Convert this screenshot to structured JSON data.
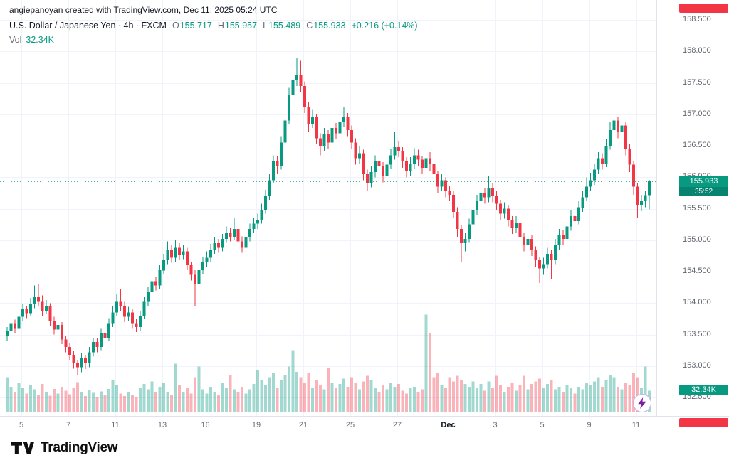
{
  "meta": {
    "copyright": "angiepanoyan created with TradingView.com, Dec 11, 2025 05:24 UTC"
  },
  "legend": {
    "symbol_title": "U.S. Dollar / Japanese Yen · 4h · FXCM",
    "ohlc": {
      "o_label": "O",
      "o": "155.717",
      "h_label": "H",
      "h": "155.957",
      "l_label": "L",
      "l": "155.489",
      "c_label": "C",
      "c": "155.933",
      "change": "+0.216 (+0.14%)"
    },
    "volume_label": "Vol",
    "volume_value": "32.34K"
  },
  "price_badge": {
    "price": "155.933",
    "countdown": "35:52",
    "color": "#089981"
  },
  "volume_badge": {
    "value": "32.34K",
    "color": "#089981"
  },
  "logo": {
    "text": "TradingView"
  },
  "colors": {
    "up": "#089981",
    "down": "#f23645",
    "volume_up": "rgba(8,153,129,0.38)",
    "volume_down": "rgba(242,54,69,0.38)",
    "grid": "#f0f3fa",
    "axis_text": "#5f636e",
    "badge_red": "#f23645"
  },
  "chart_data": {
    "type": "candlestick",
    "title": "U.S. Dollar / Japanese Yen",
    "interval": "4h",
    "exchange": "FXCM",
    "legend_position": "top-left",
    "grid": true,
    "ylim": [
      152.2,
      158.7
    ],
    "last": {
      "open": 155.717,
      "high": 155.957,
      "low": 155.489,
      "close": 155.933,
      "change": "+0.216 (+0.14%)",
      "countdown": "35:52",
      "volume_display": "32.34K"
    },
    "price_axis_ticks": [
      "158.500",
      "158.000",
      "157.500",
      "157.000",
      "156.500",
      "156.000",
      "155.500",
      "155.000",
      "154.500",
      "154.000",
      "153.500",
      "153.000",
      "152.500"
    ],
    "time_axis_ticks": [
      {
        "label": "5",
        "i": 4
      },
      {
        "label": "7",
        "i": 16
      },
      {
        "label": "11",
        "i": 28
      },
      {
        "label": "13",
        "i": 40
      },
      {
        "label": "16",
        "i": 51
      },
      {
        "label": "19",
        "i": 64
      },
      {
        "label": "21",
        "i": 76
      },
      {
        "label": "25",
        "i": 88
      },
      {
        "label": "27",
        "i": 100
      },
      {
        "label": "Dec",
        "i": 113
      },
      {
        "label": "3",
        "i": 125
      },
      {
        "label": "5",
        "i": 137
      },
      {
        "label": "9",
        "i": 149
      },
      {
        "label": "11",
        "i": 161
      }
    ],
    "columns": [
      "open",
      "high",
      "low",
      "close",
      "volume_k"
    ],
    "candles": [
      [
        153.48,
        153.62,
        153.4,
        153.55,
        52
      ],
      [
        153.55,
        153.75,
        153.5,
        153.68,
        38
      ],
      [
        153.68,
        153.74,
        153.52,
        153.6,
        30
      ],
      [
        153.6,
        153.85,
        153.55,
        153.78,
        44
      ],
      [
        153.78,
        153.98,
        153.72,
        153.9,
        36
      ],
      [
        153.9,
        153.96,
        153.76,
        153.84,
        28
      ],
      [
        153.84,
        154.08,
        153.8,
        153.98,
        40
      ],
      [
        153.98,
        154.28,
        153.92,
        154.1,
        34
      ],
      [
        154.1,
        154.3,
        153.96,
        154.02,
        26
      ],
      [
        154.02,
        154.12,
        153.8,
        153.88,
        42
      ],
      [
        153.88,
        154.05,
        153.82,
        153.95,
        30
      ],
      [
        153.95,
        154.0,
        153.64,
        153.72,
        25
      ],
      [
        153.72,
        153.78,
        153.5,
        153.58,
        35
      ],
      [
        153.58,
        153.74,
        153.52,
        153.65,
        28
      ],
      [
        153.65,
        153.7,
        153.35,
        153.42,
        38
      ],
      [
        153.42,
        153.48,
        153.22,
        153.3,
        32
      ],
      [
        153.3,
        153.36,
        153.1,
        153.18,
        27
      ],
      [
        153.18,
        153.24,
        152.96,
        153.05,
        36
      ],
      [
        153.05,
        153.1,
        152.86,
        152.98,
        45
      ],
      [
        152.98,
        153.2,
        152.9,
        153.12,
        30
      ],
      [
        153.12,
        153.18,
        152.95,
        153.05,
        24
      ],
      [
        153.05,
        153.3,
        152.98,
        153.22,
        33
      ],
      [
        153.22,
        153.45,
        153.15,
        153.38,
        29
      ],
      [
        153.38,
        153.44,
        153.22,
        153.3,
        22
      ],
      [
        153.3,
        153.6,
        153.25,
        153.52,
        31
      ],
      [
        153.52,
        153.58,
        153.36,
        153.45,
        26
      ],
      [
        153.45,
        153.76,
        153.4,
        153.68,
        35
      ],
      [
        153.68,
        153.95,
        153.62,
        153.85,
        48
      ],
      [
        153.85,
        154.15,
        153.8,
        154.02,
        40
      ],
      [
        154.02,
        154.22,
        153.88,
        153.95,
        28
      ],
      [
        153.95,
        154.02,
        153.7,
        153.78,
        24
      ],
      [
        153.78,
        153.94,
        153.72,
        153.85,
        30
      ],
      [
        153.85,
        153.9,
        153.6,
        153.68,
        26
      ],
      [
        153.68,
        153.75,
        153.54,
        153.62,
        22
      ],
      [
        153.62,
        153.88,
        153.56,
        153.8,
        36
      ],
      [
        153.8,
        154.1,
        153.75,
        154.02,
        42
      ],
      [
        154.02,
        154.26,
        153.96,
        154.18,
        34
      ],
      [
        154.18,
        154.44,
        154.12,
        154.35,
        46
      ],
      [
        154.35,
        154.42,
        154.2,
        154.28,
        30
      ],
      [
        154.28,
        154.6,
        154.22,
        154.52,
        38
      ],
      [
        154.52,
        154.78,
        154.46,
        154.68,
        44
      ],
      [
        154.68,
        154.98,
        154.62,
        154.85,
        30
      ],
      [
        154.85,
        154.92,
        154.64,
        154.72,
        26
      ],
      [
        154.72,
        155.0,
        154.66,
        154.88,
        72
      ],
      [
        154.88,
        154.95,
        154.68,
        154.76,
        40
      ],
      [
        154.76,
        154.92,
        154.7,
        154.82,
        30
      ],
      [
        154.82,
        154.88,
        154.52,
        154.6,
        36
      ],
      [
        154.6,
        154.66,
        154.36,
        154.45,
        28
      ],
      [
        154.45,
        154.52,
        153.95,
        154.3,
        52
      ],
      [
        154.3,
        154.6,
        154.22,
        154.52,
        68
      ],
      [
        154.52,
        154.74,
        154.46,
        154.65,
        34
      ],
      [
        154.65,
        154.82,
        154.58,
        154.72,
        28
      ],
      [
        154.72,
        154.94,
        154.66,
        154.85,
        38
      ],
      [
        154.85,
        155.05,
        154.78,
        154.95,
        30
      ],
      [
        154.95,
        155.02,
        154.8,
        154.88,
        26
      ],
      [
        154.88,
        155.1,
        154.82,
        155.02,
        44
      ],
      [
        155.02,
        155.22,
        154.96,
        155.12,
        36
      ],
      [
        155.12,
        155.2,
        154.98,
        155.05,
        56
      ],
      [
        155.05,
        155.35,
        155.0,
        155.18,
        34
      ],
      [
        155.18,
        155.24,
        154.9,
        154.98,
        30
      ],
      [
        154.98,
        155.06,
        154.8,
        154.88,
        38
      ],
      [
        154.88,
        155.14,
        154.82,
        155.05,
        28
      ],
      [
        155.05,
        155.26,
        154.98,
        155.18,
        34
      ],
      [
        155.18,
        155.36,
        155.12,
        155.26,
        42
      ],
      [
        155.26,
        155.42,
        155.18,
        155.32,
        62
      ],
      [
        155.32,
        155.58,
        155.26,
        155.48,
        48
      ],
      [
        155.48,
        155.8,
        155.42,
        155.7,
        40
      ],
      [
        155.7,
        156.05,
        155.64,
        155.95,
        52
      ],
      [
        155.95,
        156.35,
        155.9,
        156.25,
        58
      ],
      [
        156.25,
        156.34,
        156.05,
        156.18,
        36
      ],
      [
        156.18,
        156.65,
        156.12,
        156.55,
        48
      ],
      [
        156.55,
        157.0,
        156.48,
        156.9,
        55
      ],
      [
        156.9,
        157.42,
        156.85,
        157.3,
        68
      ],
      [
        157.3,
        157.78,
        157.22,
        157.55,
        92
      ],
      [
        157.55,
        157.9,
        157.45,
        157.62,
        60
      ],
      [
        157.62,
        157.85,
        157.35,
        157.45,
        52
      ],
      [
        157.45,
        157.52,
        157.02,
        157.12,
        44
      ],
      [
        157.12,
        157.2,
        156.72,
        156.85,
        58
      ],
      [
        156.85,
        157.08,
        156.78,
        156.95,
        36
      ],
      [
        156.95,
        157.0,
        156.52,
        156.62,
        48
      ],
      [
        156.62,
        156.7,
        156.35,
        156.5,
        40
      ],
      [
        156.5,
        156.78,
        156.42,
        156.68,
        34
      ],
      [
        156.68,
        156.75,
        156.45,
        156.55,
        66
      ],
      [
        156.55,
        156.88,
        156.48,
        156.78,
        44
      ],
      [
        156.78,
        156.86,
        156.6,
        156.7,
        36
      ],
      [
        156.7,
        156.98,
        156.62,
        156.88,
        42
      ],
      [
        156.88,
        157.12,
        156.8,
        156.95,
        50
      ],
      [
        156.95,
        157.02,
        156.65,
        156.75,
        38
      ],
      [
        156.75,
        156.82,
        156.45,
        156.55,
        52
      ],
      [
        156.55,
        156.62,
        156.2,
        156.3,
        44
      ],
      [
        156.3,
        156.5,
        156.22,
        156.38,
        34
      ],
      [
        156.38,
        156.44,
        155.95,
        156.05,
        46
      ],
      [
        156.05,
        156.12,
        155.78,
        155.9,
        54
      ],
      [
        155.9,
        156.18,
        155.84,
        156.08,
        48
      ],
      [
        156.08,
        156.35,
        156.0,
        156.25,
        36
      ],
      [
        156.25,
        156.32,
        156.08,
        156.18,
        30
      ],
      [
        156.18,
        156.24,
        155.92,
        156.02,
        40
      ],
      [
        156.02,
        156.3,
        155.96,
        156.2,
        34
      ],
      [
        156.2,
        156.45,
        156.14,
        156.35,
        44
      ],
      [
        156.35,
        156.72,
        156.28,
        156.48,
        38
      ],
      [
        156.48,
        156.58,
        156.32,
        156.42,
        42
      ],
      [
        156.42,
        156.48,
        156.15,
        156.25,
        32
      ],
      [
        156.25,
        156.32,
        156.0,
        156.1,
        28
      ],
      [
        156.1,
        156.32,
        156.02,
        156.22,
        36
      ],
      [
        156.22,
        156.46,
        156.14,
        156.35,
        38
      ],
      [
        156.35,
        156.44,
        156.18,
        156.28,
        30
      ],
      [
        156.28,
        156.34,
        156.05,
        156.15,
        34
      ],
      [
        156.15,
        156.42,
        156.06,
        156.3,
        145
      ],
      [
        156.3,
        156.4,
        156.1,
        156.22,
        118
      ],
      [
        156.22,
        156.28,
        155.95,
        156.05,
        52
      ],
      [
        156.05,
        156.1,
        155.75,
        155.85,
        58
      ],
      [
        155.85,
        156.05,
        155.78,
        155.95,
        40
      ],
      [
        155.95,
        156.0,
        155.68,
        155.78,
        36
      ],
      [
        155.78,
        155.86,
        155.62,
        155.72,
        52
      ],
      [
        155.72,
        155.78,
        155.35,
        155.45,
        46
      ],
      [
        155.45,
        155.52,
        155.05,
        155.18,
        54
      ],
      [
        155.18,
        155.24,
        154.65,
        154.95,
        48
      ],
      [
        154.95,
        155.12,
        154.82,
        155.02,
        42
      ],
      [
        155.02,
        155.34,
        154.96,
        155.25,
        38
      ],
      [
        155.25,
        155.58,
        155.18,
        155.48,
        46
      ],
      [
        155.48,
        155.72,
        155.4,
        155.62,
        36
      ],
      [
        155.62,
        155.86,
        155.55,
        155.75,
        42
      ],
      [
        155.75,
        155.82,
        155.58,
        155.68,
        32
      ],
      [
        155.68,
        156.02,
        155.6,
        155.82,
        46
      ],
      [
        155.82,
        155.9,
        155.6,
        155.7,
        36
      ],
      [
        155.7,
        155.78,
        155.48,
        155.58,
        54
      ],
      [
        155.58,
        155.64,
        155.32,
        155.42,
        40
      ],
      [
        155.42,
        155.6,
        155.34,
        155.5,
        30
      ],
      [
        155.5,
        155.56,
        155.22,
        155.32,
        38
      ],
      [
        155.32,
        155.38,
        155.1,
        155.2,
        44
      ],
      [
        155.2,
        155.38,
        155.12,
        155.28,
        32
      ],
      [
        155.28,
        155.32,
        154.95,
        155.05,
        40
      ],
      [
        155.05,
        155.12,
        154.82,
        154.92,
        54
      ],
      [
        154.92,
        155.12,
        154.85,
        155.02,
        34
      ],
      [
        155.02,
        155.08,
        154.75,
        154.85,
        42
      ],
      [
        154.85,
        154.9,
        154.58,
        154.68,
        46
      ],
      [
        154.68,
        154.74,
        154.32,
        154.55,
        50
      ],
      [
        154.55,
        154.72,
        154.45,
        154.62,
        36
      ],
      [
        154.62,
        154.88,
        154.55,
        154.78,
        42
      ],
      [
        154.78,
        154.84,
        154.38,
        154.68,
        48
      ],
      [
        154.68,
        155.02,
        154.62,
        154.92,
        34
      ],
      [
        154.92,
        155.18,
        154.85,
        155.08,
        38
      ],
      [
        155.08,
        155.16,
        154.92,
        155.02,
        30
      ],
      [
        155.02,
        155.32,
        154.96,
        155.22,
        40
      ],
      [
        155.22,
        155.48,
        155.15,
        155.38,
        36
      ],
      [
        155.38,
        155.45,
        155.22,
        155.3,
        28
      ],
      [
        155.3,
        155.62,
        155.25,
        155.52,
        38
      ],
      [
        155.52,
        155.78,
        155.45,
        155.68,
        34
      ],
      [
        155.68,
        156.0,
        155.62,
        155.85,
        44
      ],
      [
        155.85,
        156.06,
        155.78,
        155.95,
        40
      ],
      [
        155.95,
        156.22,
        155.88,
        156.12,
        46
      ],
      [
        156.12,
        156.4,
        156.05,
        156.3,
        52
      ],
      [
        156.3,
        156.38,
        156.12,
        156.22,
        38
      ],
      [
        156.22,
        156.6,
        156.16,
        156.5,
        48
      ],
      [
        156.5,
        156.88,
        156.44,
        156.75,
        56
      ],
      [
        156.75,
        157.0,
        156.68,
        156.9,
        52
      ],
      [
        156.9,
        156.96,
        156.62,
        156.72,
        38
      ],
      [
        156.72,
        156.95,
        156.65,
        156.82,
        34
      ],
      [
        156.82,
        156.88,
        156.35,
        156.45,
        44
      ],
      [
        156.45,
        156.52,
        156.08,
        156.2,
        40
      ],
      [
        156.2,
        156.26,
        155.72,
        155.85,
        58
      ],
      [
        155.85,
        155.9,
        155.35,
        155.55,
        52
      ],
      [
        155.55,
        155.72,
        155.46,
        155.62,
        36
      ],
      [
        155.62,
        155.78,
        155.52,
        155.717,
        68
      ],
      [
        155.717,
        155.957,
        155.489,
        155.933,
        32.34
      ]
    ]
  }
}
